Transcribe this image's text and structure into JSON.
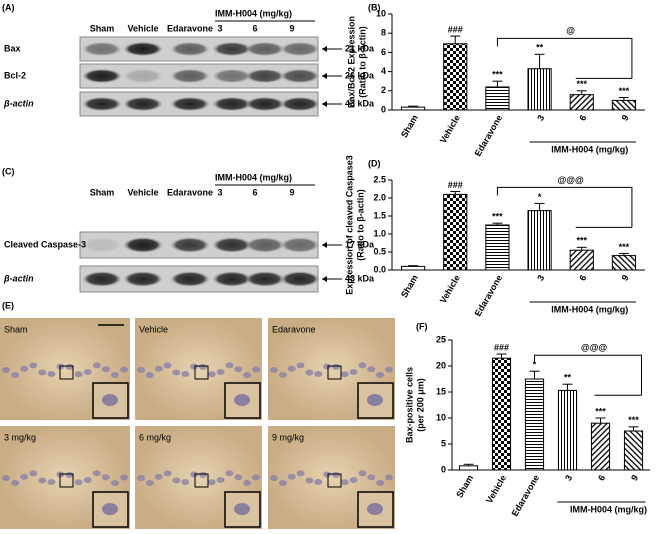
{
  "figure": {
    "panel_a": {
      "label": "(A)",
      "lanes": [
        "Sham",
        "Vehicle",
        "Edaravone"
      ],
      "group": "IMM-H004 (mg/kg)",
      "doses": [
        "3",
        "6",
        "9"
      ],
      "rows": [
        "Bax",
        "Bcl-2",
        "β-actin"
      ],
      "sizes": [
        "21 kDa",
        "26 kDa",
        "43 kDa"
      ]
    },
    "panel_c": {
      "label": "(C)",
      "lanes": [
        "Sham",
        "Vehicle",
        "Edaravone"
      ],
      "group": "IMM-H004 (mg/kg)",
      "doses": [
        "3",
        "6",
        "9"
      ],
      "rows": [
        "Cleaved Caspase-3",
        "β-actin"
      ],
      "sizes": [
        "17 kDa",
        "43 kDa"
      ]
    },
    "panel_e": {
      "label": "(E)",
      "images": [
        "Sham",
        "Vehicle",
        "Edaravone",
        "3 mg/kg",
        "6 mg/kg",
        "9 mg/kg"
      ]
    }
  },
  "chart_data": [
    {
      "type": "bar",
      "panel_label": "(B)",
      "y_label": "Bax/Bcl-2 Expression",
      "y_label_2": "(Ratio to β-actin)",
      "categories": [
        "Sham",
        "Vehicle",
        "Edaravone",
        "3",
        "6",
        "9"
      ],
      "values": [
        0.3,
        6.9,
        2.4,
        4.3,
        1.6,
        1.0
      ],
      "errors": [
        0.1,
        0.8,
        0.6,
        1.5,
        0.4,
        0.3
      ],
      "annotations": [
        null,
        "###",
        "***",
        "**",
        "***",
        "***"
      ],
      "bracket_label": "@",
      "group_label": "IMM-H004 (mg/kg)",
      "ylim": [
        0,
        10
      ],
      "yticks": [
        0,
        2,
        4,
        6,
        8,
        10
      ]
    },
    {
      "type": "bar",
      "panel_label": "(D)",
      "y_label": "Expression of cleaved Caspase3",
      "y_label_2": "(Ratio to β-actin)",
      "categories": [
        "Sham",
        "Vehicle",
        "Edaravone",
        "3",
        "6",
        "9"
      ],
      "values": [
        0.1,
        2.1,
        1.25,
        1.65,
        0.55,
        0.4
      ],
      "errors": [
        0.02,
        0.08,
        0.05,
        0.2,
        0.08,
        0.06
      ],
      "annotations": [
        null,
        "###",
        "***",
        "*",
        "***",
        "***"
      ],
      "bracket_label": "@@@",
      "group_label": "IMM-H004 (mg/kg)",
      "ylim": [
        0,
        2.5
      ],
      "yticks": [
        {
          "value": 0,
          "label": "0.0"
        },
        0.5,
        {
          "value": 1,
          "label": "1.0"
        },
        1.5,
        {
          "value": 2,
          "label": "2.0"
        },
        2.5
      ]
    },
    {
      "type": "bar",
      "panel_label": "(F)",
      "y_label": "Bax-positive cells",
      "y_label_2": "(per 200 μm)",
      "categories": [
        "Sham",
        "Vehicle",
        "Edaravone",
        "3",
        "6",
        "9"
      ],
      "values": [
        0.8,
        21.5,
        17.5,
        15.3,
        9,
        7.5
      ],
      "errors": [
        0.3,
        0.8,
        1.5,
        1.2,
        1,
        0.8
      ],
      "annotations": [
        null,
        "###",
        "*",
        "**",
        "***",
        "***"
      ],
      "bracket_label": "@@@",
      "group_label": "IMM-H004 (mg/kg)",
      "ylim": [
        0,
        25
      ],
      "yticks": [
        0,
        5,
        10,
        15,
        20,
        25
      ]
    }
  ]
}
